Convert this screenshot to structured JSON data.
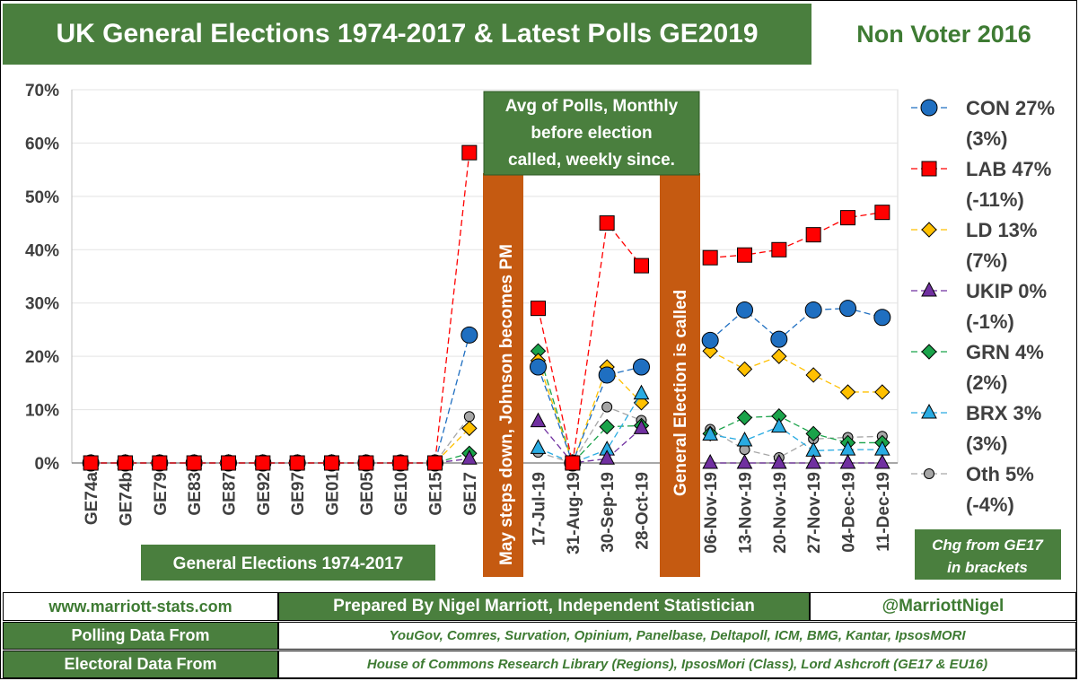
{
  "header": {
    "title": "UK General Elections 1974-2017 & Latest Polls GE2019",
    "subtitle": "Non Voter 2016"
  },
  "colors": {
    "green": "#4a7f3e",
    "orange": "#c55a11",
    "con": "#1f6fc1",
    "lab": "#ff0000",
    "ld": "#ffc000",
    "ukip": "#7030a0",
    "grn": "#1aa34a",
    "brx": "#29abe2",
    "oth": "#a6a6a6"
  },
  "annotations": {
    "polls_box": [
      "Avg of Polls, Monthly",
      "before election",
      "called, weekly since."
    ],
    "may_bar": "May steps down, Johnson  becomes PM",
    "ge_bar": "General Election is called",
    "ge_label": "General Elections 1974-2017",
    "chg_note": [
      "Chg from GE17",
      "in brackets"
    ]
  },
  "chart_data": {
    "type": "line",
    "ylim": [
      0,
      70
    ],
    "y_ticks": [
      "0%",
      "10%",
      "20%",
      "30%",
      "40%",
      "50%",
      "60%",
      "70%"
    ],
    "categories": [
      "GE74a",
      "GE74b",
      "GE79",
      "GE83",
      "GE87",
      "GE92",
      "GE97",
      "GE01",
      "GE05",
      "GE10",
      "GE15",
      "GE17",
      "",
      "17-Jul-19",
      "31-Aug-19",
      "30-Sep-19",
      "28-Oct-19",
      "",
      "06-Nov-19",
      "13-Nov-19",
      "20-Nov-19",
      "27-Nov-19",
      "04-Dec-19",
      "11-Dec-19"
    ],
    "series": [
      {
        "name": "CON",
        "legend": [
          "CON 27%",
          "(3%)"
        ],
        "marker": "circle",
        "color": "#1f6fc1",
        "values": [
          0,
          0,
          0,
          0,
          0,
          0,
          0,
          0,
          0,
          0,
          0,
          24,
          null,
          18,
          0,
          16.5,
          18,
          null,
          23,
          28.7,
          23.2,
          28.7,
          29,
          27.3
        ]
      },
      {
        "name": "LAB",
        "legend": [
          "LAB 47%",
          "(-11%)"
        ],
        "marker": "square",
        "color": "#ff0000",
        "values": [
          0,
          0,
          0,
          0,
          0,
          0,
          0,
          0,
          0,
          0,
          0,
          58.2,
          null,
          29,
          0,
          45,
          37,
          null,
          38.5,
          39,
          40,
          42.8,
          46,
          47
        ]
      },
      {
        "name": "LD",
        "legend": [
          "LD 13%",
          "(7%)"
        ],
        "marker": "diamond",
        "color": "#ffc000",
        "values": [
          0,
          0,
          0,
          0,
          0,
          0,
          0,
          0,
          0,
          0,
          0,
          6.5,
          null,
          19.2,
          0,
          18,
          11.3,
          null,
          21,
          17.6,
          20,
          16.5,
          13.3,
          13.3
        ]
      },
      {
        "name": "UKIP",
        "legend": [
          "UKIP 0%",
          "(-1%)"
        ],
        "marker": "triangle",
        "color": "#7030a0",
        "values": [
          0,
          0,
          0,
          0,
          0,
          0,
          0,
          0,
          0,
          0,
          0,
          0.8,
          null,
          7.8,
          0,
          0.8,
          6.5,
          null,
          0,
          0,
          0,
          0,
          0,
          0
        ]
      },
      {
        "name": "GRN",
        "legend": [
          "GRN 4%",
          "(2%)"
        ],
        "marker": "diamond",
        "color": "#1aa34a",
        "values": [
          0,
          0,
          0,
          0,
          0,
          0,
          0,
          0,
          0,
          0,
          0,
          1.8,
          null,
          21,
          0,
          6.8,
          7,
          null,
          5.5,
          8.5,
          8.8,
          5.5,
          3.8,
          3.8
        ]
      },
      {
        "name": "BRX",
        "legend": [
          "BRX 3%",
          "(3%)"
        ],
        "marker": "triangle",
        "color": "#29abe2",
        "values": [
          0,
          0,
          0,
          0,
          0,
          0,
          0,
          0,
          0,
          0,
          0,
          null,
          null,
          2.8,
          0,
          2.5,
          13,
          null,
          5.3,
          4.2,
          6.8,
          2.3,
          2.5,
          2.5
        ]
      },
      {
        "name": "Oth",
        "legend": [
          "Oth 5%",
          "(-4%)"
        ],
        "marker": "circle-small",
        "color": "#a6a6a6",
        "values": [
          0,
          0,
          0,
          0,
          0,
          0,
          0,
          0,
          0,
          0,
          0,
          8.7,
          null,
          2,
          0,
          10.5,
          8,
          null,
          6.3,
          2.5,
          1,
          4.5,
          4.8,
          5
        ]
      }
    ]
  },
  "footer": {
    "website": "www.marriott-stats.com",
    "prepared_by": "Prepared By Nigel Marriott, Independent Statistician",
    "twitter": "@MarriottNigel",
    "polling_label": "Polling Data From",
    "polling_sources": "YouGov, Comres, Survation, Opinium, Panelbase, Deltapoll, ICM, BMG, Kantar, IpsosMORI",
    "electoral_label": "Electoral Data From",
    "electoral_sources": "House of Commons Research Library (Regions), IpsosMori (Class), Lord Ashcroft (GE17 & EU16)"
  }
}
